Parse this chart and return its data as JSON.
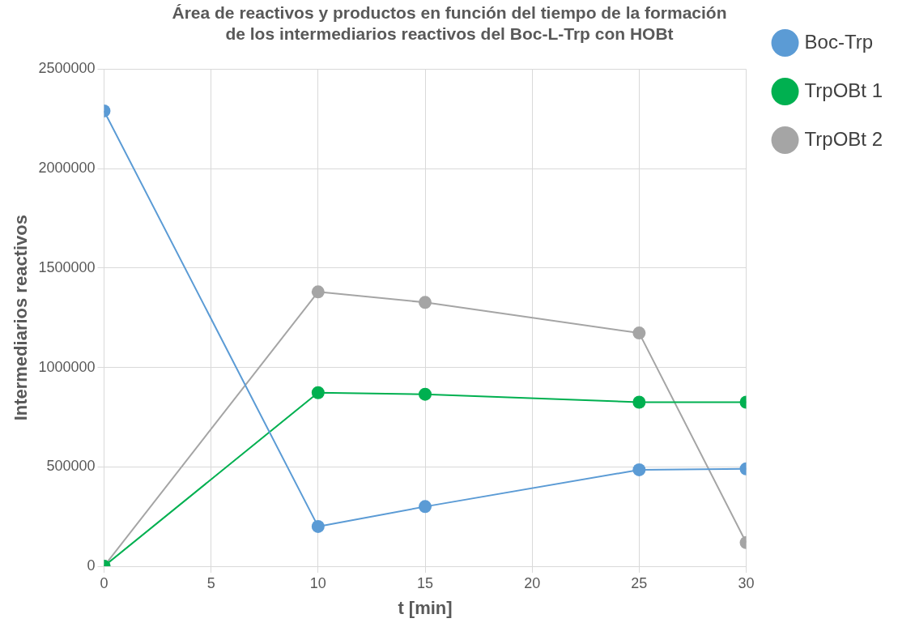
{
  "chart_data": {
    "type": "line",
    "title": "Área de reactivos y productos en función del tiempo de la formación de los intermediarios reactivos del Boc-L-Trp con HOBt",
    "xlabel": "t [min]",
    "ylabel": "Intermediarios reactivos",
    "x": [
      0,
      10,
      15,
      25,
      30
    ],
    "series": [
      {
        "name": "Boc-Trp",
        "color": "#5b9bd5",
        "values": [
          2290000,
          200000,
          300000,
          485000,
          490000
        ]
      },
      {
        "name": "TrpOBt 1",
        "color": "#00b050",
        "values": [
          0,
          873000,
          865000,
          825000,
          825000
        ]
      },
      {
        "name": "TrpOBt 2",
        "color": "#a5a5a5",
        "values": [
          0,
          1380000,
          1327000,
          1173000,
          119000
        ]
      }
    ],
    "xlim": [
      0,
      30
    ],
    "xticks": [
      0,
      5,
      10,
      15,
      20,
      25,
      30
    ],
    "ylim": [
      0,
      2500000
    ],
    "yticks": [
      0,
      500000,
      1000000,
      1500000,
      2000000,
      2500000
    ],
    "grid": true,
    "legend": "top right",
    "marker": "circle",
    "line_style": "solid"
  }
}
